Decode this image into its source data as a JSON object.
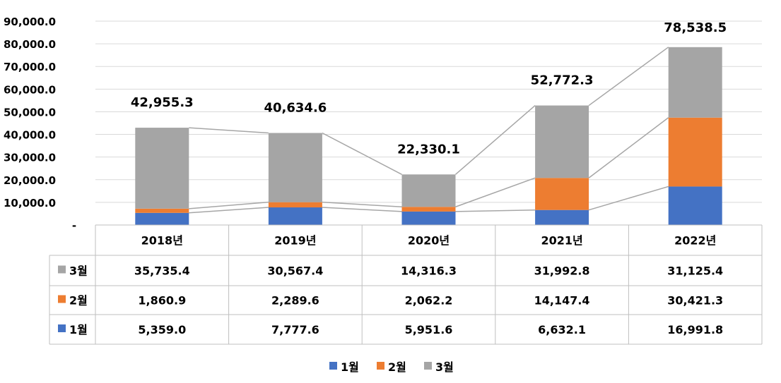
{
  "chart_data": {
    "type": "bar",
    "stacked": true,
    "categories": [
      "2018년",
      "2019년",
      "2020년",
      "2021년",
      "2022년"
    ],
    "series": [
      {
        "name": "1월",
        "color": "#4472C4",
        "values": [
          5359.0,
          7777.6,
          5951.6,
          6632.1,
          16991.8
        ],
        "labels": [
          "5,359.0",
          "7,777.6",
          "5,951.6",
          "6,632.1",
          "16,991.8"
        ]
      },
      {
        "name": "2월",
        "color": "#ED7D31",
        "values": [
          1860.9,
          2289.6,
          2062.2,
          14147.4,
          30421.3
        ],
        "labels": [
          "1,860.9",
          "2,289.6",
          "2,062.2",
          "14,147.4",
          "30,421.3"
        ]
      },
      {
        "name": "3월",
        "color": "#A5A5A5",
        "values": [
          35735.4,
          30567.4,
          14316.3,
          31992.8,
          31125.4
        ],
        "labels": [
          "35,735.4",
          "30,567.4",
          "14,316.3",
          "31,992.8",
          "31,125.4"
        ]
      }
    ],
    "totals": [
      42955.3,
      40634.6,
      22330.1,
      52772.3,
      78538.5
    ],
    "total_labels": [
      "42,955.3",
      "40,634.6",
      "22,330.1",
      "52,772.3",
      "78,538.5"
    ],
    "ylim": [
      0,
      90000
    ],
    "yticks": [
      0,
      10000,
      20000,
      30000,
      40000,
      50000,
      60000,
      70000,
      80000,
      90000
    ],
    "ytick_labels": [
      "-",
      "10,000.0",
      "20,000.0",
      "30,000.0",
      "40,000.0",
      "50,000.0",
      "60,000.0",
      "70,000.0",
      "80,000.0",
      "90,000.0"
    ],
    "grid": true,
    "series_lines": true,
    "data_table": true,
    "legend_position": "bottom",
    "title": "",
    "xlabel": "",
    "ylabel": ""
  }
}
